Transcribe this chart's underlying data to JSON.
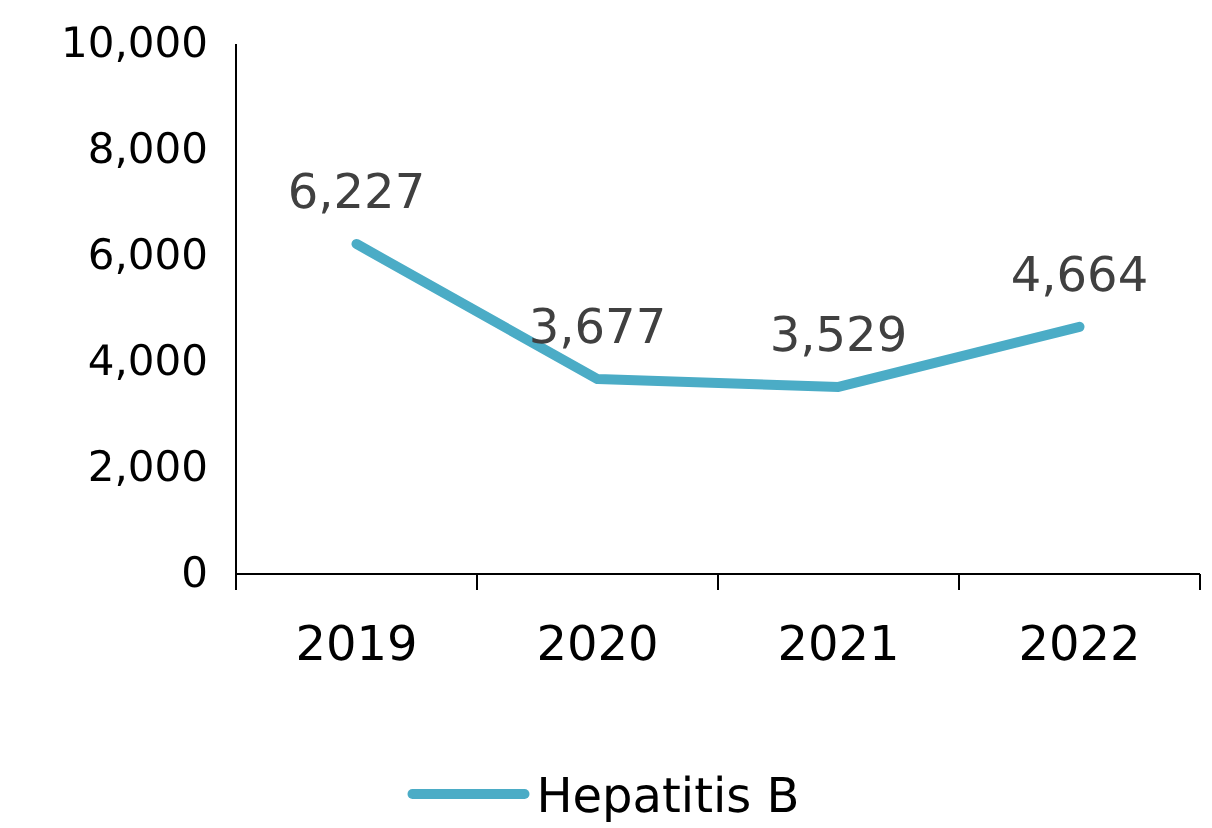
{
  "chart_data": {
    "type": "line",
    "categories": [
      "2019",
      "2020",
      "2021",
      "2022"
    ],
    "series": [
      {
        "name": "Hepatitis B",
        "color": "#4bacc6",
        "values": [
          6227,
          3677,
          3529,
          4664
        ]
      }
    ],
    "ylim": [
      0,
      10000
    ],
    "yticks": [
      {
        "value": 0,
        "label": "0"
      },
      {
        "value": 2000,
        "label": "2,000"
      },
      {
        "value": 4000,
        "label": "4,000"
      },
      {
        "value": 6000,
        "label": "6,000"
      },
      {
        "value": 8000,
        "label": "8,000"
      },
      {
        "value": 10000,
        "label": "10,000"
      }
    ],
    "value_labels": [
      "6,227",
      "3,677",
      "3,529",
      "4,664"
    ],
    "grid": false,
    "legend": "bottom",
    "marker": "none",
    "line_style": "solid"
  }
}
